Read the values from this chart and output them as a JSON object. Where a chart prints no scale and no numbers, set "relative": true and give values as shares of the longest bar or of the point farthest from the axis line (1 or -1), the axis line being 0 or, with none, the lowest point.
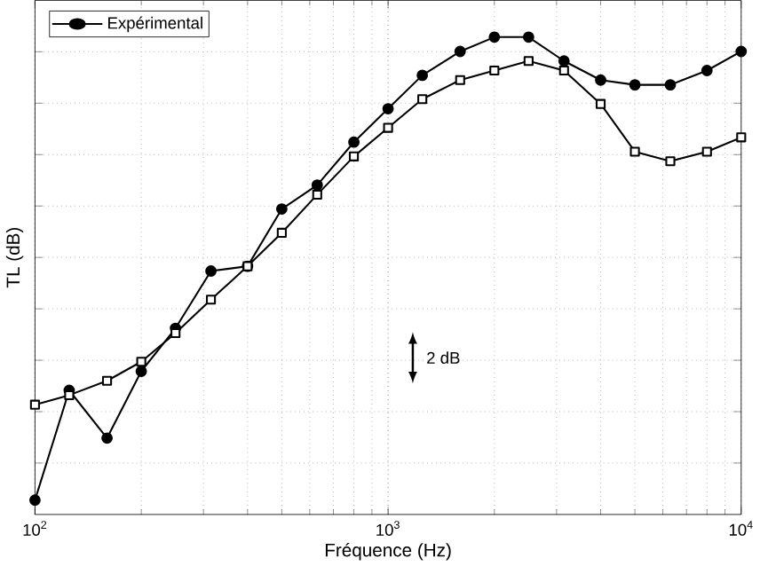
{
  "chart_data": {
    "type": "line",
    "xlabel": "Fréquence (Hz)",
    "ylabel": "TL (dB)",
    "relative": true,
    "log": "x",
    "grid": true,
    "legend": "top left",
    "tick_labels": "x",
    "xlim": [
      100,
      10000
    ],
    "xticks": [
      {
        "value": 100,
        "label": "10$^{2}$"
      },
      {
        "value": 1000,
        "label": "10$^{3}$"
      },
      {
        "value": 10000,
        "label": "10$^{4}$"
      }
    ],
    "x": [
      100,
      125,
      160,
      200,
      250,
      315,
      400,
      500,
      630,
      800,
      1000,
      1250,
      1600,
      2000,
      2500,
      3150,
      4000,
      5000,
      6300,
      8000,
      10000
    ],
    "series": [
      {
        "name": "Expérimental",
        "color": "#000000",
        "marker": "circle",
        "values": [
          0.03,
          0.26,
          0.16,
          0.3,
          0.39,
          0.51,
          0.52,
          0.64,
          0.69,
          0.78,
          0.85,
          0.92,
          0.97,
          1.0,
          1.0,
          0.95,
          0.91,
          0.9,
          0.9,
          0.93,
          0.97
        ]
      },
      {
        "color": "#000000",
        "marker": "square",
        "values": [
          0.23,
          0.25,
          0.28,
          0.32,
          0.38,
          0.45,
          0.52,
          0.59,
          0.67,
          0.75,
          0.81,
          0.87,
          0.91,
          0.93,
          0.95,
          0.93,
          0.86,
          0.76,
          0.74,
          0.76,
          0.79
        ]
      }
    ],
    "annotations": [
      "2 dB"
    ]
  }
}
